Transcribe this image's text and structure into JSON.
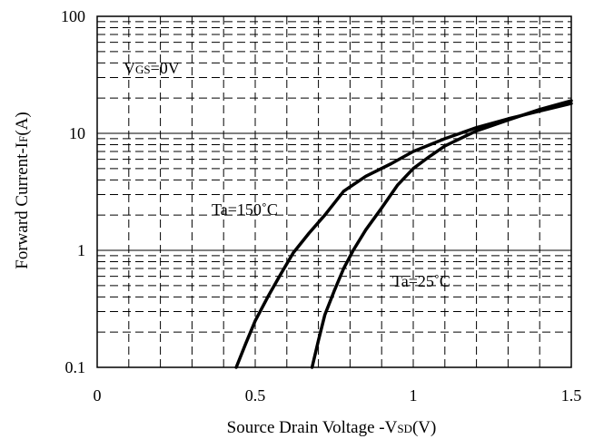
{
  "chart_data": {
    "type": "line",
    "xlabel": {
      "prefix": "Source Drain Voltage -V",
      "sub": "SD",
      "suffix": "(V)"
    },
    "ylabel": {
      "prefix": "Forward Current-I",
      "sub": "F",
      "suffix": "(A)"
    },
    "x_ticks": [
      "0",
      "0.5",
      "1",
      "1.5"
    ],
    "x_tick_values": [
      0,
      0.5,
      1,
      1.5
    ],
    "y_ticks": [
      "0.1",
      "1",
      "10",
      "100"
    ],
    "y_tick_values": [
      0.1,
      1,
      10,
      100
    ],
    "xlim": [
      0,
      1.5
    ],
    "ylim": [
      0.1,
      100
    ],
    "y_scale": "log",
    "grid": true,
    "annotations": [
      {
        "id": "vgs",
        "prefix": "V",
        "sub": "GS",
        "suffix": "=0V"
      },
      {
        "id": "ta150",
        "text": "Ta=150˚C"
      },
      {
        "id": "ta25",
        "text": "Ta=25˚C"
      }
    ],
    "series": [
      {
        "name": "Ta=150˚C",
        "x": [
          0.44,
          0.47,
          0.5,
          0.54,
          0.58,
          0.62,
          0.67,
          0.72,
          0.78,
          0.85,
          0.93,
          1.0,
          1.1,
          1.2,
          1.3,
          1.4,
          1.5
        ],
        "y": [
          0.1,
          0.16,
          0.25,
          0.4,
          0.62,
          0.95,
          1.4,
          2.0,
          3.2,
          4.3,
          5.5,
          7.0,
          9.0,
          11.2,
          13.3,
          15.5,
          18.0
        ]
      },
      {
        "name": "Ta=25˚C",
        "x": [
          0.68,
          0.7,
          0.72,
          0.75,
          0.78,
          0.81,
          0.85,
          0.9,
          0.95,
          1.0,
          1.05,
          1.1,
          1.2,
          1.3,
          1.4,
          1.5
        ],
        "y": [
          0.1,
          0.17,
          0.28,
          0.45,
          0.7,
          1.0,
          1.5,
          2.3,
          3.6,
          5.0,
          6.3,
          7.8,
          10.5,
          13.0,
          16.0,
          19.0
        ]
      }
    ]
  }
}
